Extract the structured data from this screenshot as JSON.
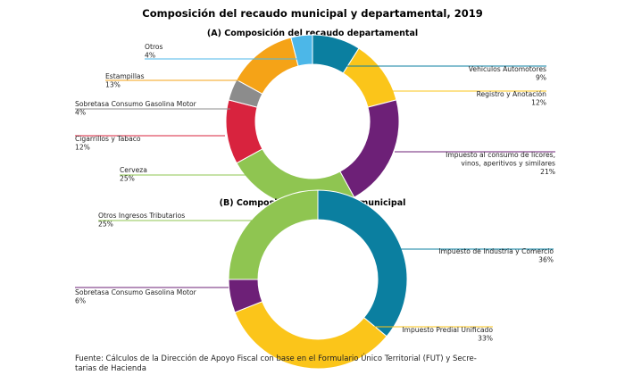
{
  "title": "Composición del recaudo municipal y departamental, 2019",
  "source_line1": "Fuente: Cálculos de la Dirección de Apoyo Fiscal con base en el Formulario Único Territorial (FUT) y Secre-",
  "source_line2": "tarias de Hacienda",
  "chart_data": [
    {
      "type": "pie",
      "title": "(A) Composición del recaudo departamental",
      "slices": [
        {
          "name": "Vehiculos Automotores",
          "value": 9,
          "label": "9%",
          "color": "#0b7fa0"
        },
        {
          "name": "Registro y Anotación",
          "value": 12,
          "label": "12%",
          "color": "#fbc51a"
        },
        {
          "name": "Impuesto al consumo de licores, vinos, aperitivos y similares",
          "name_lines": [
            "Impuesto al consumo de licores,",
            "vinos, aperitivos y similares"
          ],
          "value": 21,
          "label": "21%",
          "color": "#6d2077"
        },
        {
          "name": "Cerveza",
          "value": 25,
          "label": "25%",
          "color": "#8fc551"
        },
        {
          "name": "Cigarrillos y Tabaco",
          "value": 12,
          "label": "12%",
          "color": "#d8233e"
        },
        {
          "name": "Sobretasa Consumo Gasolina Motor",
          "value": 4,
          "label": "4%",
          "color": "#8c8c8c"
        },
        {
          "name": "Estampillas",
          "value": 13,
          "label": "13%",
          "color": "#f5a317"
        },
        {
          "name": "Otros",
          "value": 4,
          "label": "4%",
          "color": "#4cb7e8"
        }
      ]
    },
    {
      "type": "pie",
      "title": "(B) Composición del recaudo municipal",
      "slices": [
        {
          "name": "Impuesto de Industria y Comercio",
          "value": 36,
          "label": "36%",
          "color": "#0b7fa0"
        },
        {
          "name": "Impuesto Predial Unificado",
          "value": 33,
          "label": "33%",
          "color": "#fbc51a"
        },
        {
          "name": "Sobretasa Consumo Gasolina Motor",
          "value": 6,
          "label": "6%",
          "color": "#6d2077"
        },
        {
          "name": "Otros Ingresos Tributarios",
          "value": 25,
          "label": "25%",
          "color": "#8fc551"
        }
      ]
    }
  ]
}
